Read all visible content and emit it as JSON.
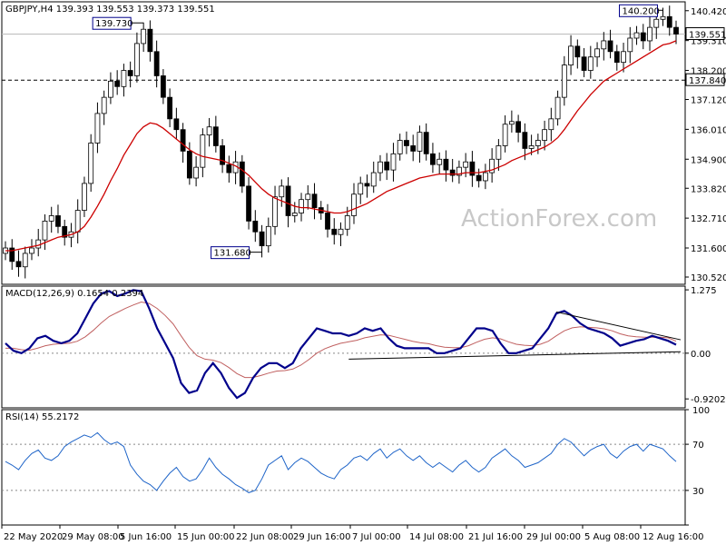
{
  "chart_data": {
    "type": "candlestick",
    "main": {
      "header": "GBPJPY,H4  139.393 139.553 139.373 139.551",
      "y_ticks": [
        "140.420",
        "139.310",
        "138.200",
        "137.120",
        "136.010",
        "134.900",
        "133.820",
        "132.710",
        "131.600",
        "130.520"
      ],
      "y_range": [
        130.25,
        140.75
      ],
      "current_price_label": "139.551",
      "current_price": 139.551,
      "support_label": "137.840",
      "support_level": 137.84,
      "annotations": [
        {
          "text": "139.730",
          "price": 139.73
        },
        {
          "text": "131.680",
          "price": 131.68
        },
        {
          "text": "140.200",
          "price": 140.2
        }
      ],
      "series": [
        {
          "name": "price",
          "color": "#000000",
          "values": [
            131.6,
            131.1,
            130.9,
            131.4,
            131.6,
            131.9,
            132.6,
            132.8,
            132.4,
            132.0,
            132.2,
            133.0,
            134.0,
            135.5,
            136.6,
            137.2,
            137.8,
            137.6,
            138.2,
            138.0,
            139.2,
            139.73,
            138.9,
            138.0,
            137.2,
            136.4,
            136.0,
            135.2,
            134.2,
            134.6,
            135.8,
            136.1,
            135.4,
            134.7,
            134.4,
            134.8,
            133.9,
            132.6,
            132.2,
            131.68,
            132.4,
            133.5,
            133.9,
            132.8,
            132.9,
            133.4,
            133.6,
            133.1,
            132.9,
            132.3,
            132.1,
            132.3,
            132.8,
            133.6,
            134.0,
            133.9,
            134.4,
            134.8,
            134.5,
            135.1,
            135.6,
            135.4,
            135.2,
            135.9,
            135.1,
            134.7,
            134.9,
            134.5,
            134.3,
            134.6,
            134.8,
            134.3,
            134.1,
            134.4,
            134.9,
            135.4,
            136.2,
            136.3,
            135.9,
            135.3,
            135.4,
            135.6,
            136.0,
            136.4,
            137.2,
            138.4,
            139.1,
            138.7,
            138.2,
            138.7,
            139.0,
            139.3,
            138.9,
            138.5,
            138.9,
            139.4,
            139.6,
            139.3,
            139.8,
            140.1,
            140.2,
            139.8,
            139.551
          ]
        },
        {
          "name": "MA",
          "color": "#cc0000",
          "values": [
            131.5,
            131.5,
            131.55,
            131.6,
            131.65,
            131.7,
            131.8,
            131.9,
            132.0,
            132.05,
            132.1,
            132.2,
            132.4,
            132.75,
            133.15,
            133.6,
            134.1,
            134.55,
            135.05,
            135.45,
            135.85,
            136.1,
            136.25,
            136.2,
            136.05,
            135.85,
            135.65,
            135.45,
            135.25,
            135.1,
            135.0,
            134.95,
            134.9,
            134.85,
            134.75,
            134.65,
            134.5,
            134.3,
            134.05,
            133.8,
            133.6,
            133.45,
            133.35,
            133.25,
            133.15,
            133.1,
            133.1,
            133.05,
            133.0,
            132.95,
            132.9,
            132.9,
            132.95,
            133.05,
            133.15,
            133.25,
            133.4,
            133.55,
            133.7,
            133.8,
            133.9,
            134.0,
            134.1,
            134.2,
            134.25,
            134.3,
            134.35,
            134.35,
            134.35,
            134.35,
            134.4,
            134.4,
            134.4,
            134.45,
            134.5,
            134.6,
            134.7,
            134.85,
            134.95,
            135.05,
            135.15,
            135.25,
            135.35,
            135.5,
            135.7,
            136.0,
            136.35,
            136.7,
            137.0,
            137.3,
            137.55,
            137.8,
            137.95,
            138.1,
            138.25,
            138.4,
            138.55,
            138.7,
            138.85,
            139.0,
            139.15,
            139.2,
            139.3
          ]
        }
      ]
    },
    "macd": {
      "header": "MACD(12,26,9) 0.1654 0.2394",
      "y_ticks": [
        "1.275",
        "0.00",
        "-0.9202"
      ],
      "y_range": [
        -1.1,
        1.35
      ],
      "series": [
        {
          "name": "macd",
          "color": "#00008b",
          "values": [
            0.2,
            0.05,
            0.0,
            0.1,
            0.3,
            0.35,
            0.25,
            0.2,
            0.25,
            0.4,
            0.7,
            1.0,
            1.2,
            1.25,
            1.15,
            1.2,
            1.27,
            1.25,
            0.9,
            0.5,
            0.2,
            -0.1,
            -0.6,
            -0.8,
            -0.75,
            -0.4,
            -0.2,
            -0.4,
            -0.7,
            -0.9,
            -0.8,
            -0.5,
            -0.3,
            -0.2,
            -0.2,
            -0.3,
            -0.2,
            0.1,
            0.3,
            0.5,
            0.45,
            0.4,
            0.4,
            0.35,
            0.4,
            0.5,
            0.45,
            0.5,
            0.3,
            0.15,
            0.1,
            0.1,
            0.1,
            0.1,
            0.0,
            0.0,
            0.05,
            0.1,
            0.3,
            0.5,
            0.5,
            0.45,
            0.2,
            0.0,
            0.0,
            0.05,
            0.1,
            0.3,
            0.5,
            0.8,
            0.85,
            0.75,
            0.6,
            0.5,
            0.45,
            0.4,
            0.3,
            0.15,
            0.2,
            0.25,
            0.28,
            0.35,
            0.3,
            0.25,
            0.17
          ]
        },
        {
          "name": "signal",
          "color": "#c06060",
          "values": [
            0.1,
            0.1,
            0.07,
            0.06,
            0.1,
            0.15,
            0.18,
            0.19,
            0.2,
            0.24,
            0.33,
            0.46,
            0.61,
            0.74,
            0.82,
            0.9,
            0.97,
            1.03,
            1.0,
            0.9,
            0.76,
            0.59,
            0.35,
            0.12,
            -0.05,
            -0.12,
            -0.14,
            -0.19,
            -0.29,
            -0.41,
            -0.49,
            -0.49,
            -0.45,
            -0.4,
            -0.36,
            -0.35,
            -0.32,
            -0.24,
            -0.13,
            0.0,
            0.09,
            0.15,
            0.2,
            0.23,
            0.26,
            0.31,
            0.34,
            0.37,
            0.36,
            0.32,
            0.28,
            0.24,
            0.21,
            0.19,
            0.15,
            0.12,
            0.11,
            0.11,
            0.15,
            0.22,
            0.28,
            0.31,
            0.29,
            0.23,
            0.18,
            0.16,
            0.15,
            0.18,
            0.24,
            0.35,
            0.45,
            0.51,
            0.53,
            0.52,
            0.51,
            0.49,
            0.45,
            0.39,
            0.35,
            0.33,
            0.32,
            0.32,
            0.32,
            0.31,
            0.24
          ]
        }
      ]
    },
    "rsi": {
      "header": "RSI(14) 55.2172",
      "y_ticks": [
        "100",
        "70",
        "30",
        "0"
      ],
      "levels": [
        70,
        30
      ],
      "y_range": [
        0,
        100
      ],
      "series": [
        {
          "name": "rsi",
          "color": "#1e64c8",
          "values": [
            55,
            52,
            48,
            56,
            62,
            65,
            58,
            56,
            60,
            68,
            72,
            75,
            78,
            76,
            80,
            74,
            70,
            72,
            68,
            52,
            44,
            38,
            35,
            30,
            38,
            45,
            50,
            42,
            38,
            40,
            48,
            58,
            50,
            44,
            40,
            35,
            32,
            28,
            30,
            40,
            52,
            56,
            60,
            48,
            54,
            58,
            55,
            50,
            45,
            42,
            40,
            48,
            52,
            58,
            60,
            56,
            62,
            66,
            58,
            63,
            66,
            60,
            56,
            60,
            54,
            50,
            54,
            50,
            46,
            52,
            56,
            50,
            46,
            50,
            58,
            62,
            66,
            60,
            56,
            50,
            52,
            54,
            58,
            62,
            70,
            75,
            72,
            66,
            60,
            65,
            68,
            70,
            62,
            58,
            64,
            68,
            70,
            64,
            70,
            68,
            66,
            60,
            55
          ]
        }
      ]
    },
    "x_labels": [
      "22 May 2020",
      "29 May 08:00",
      "5 Jun 16:00",
      "15 Jun 00:00",
      "22 Jun 08:00",
      "29 Jun 16:00",
      "7 Jul 00:00",
      "14 Jul 08:00",
      "21 Jul 16:00",
      "29 Jul 00:00",
      "5 Aug 08:00",
      "12 Aug 16:00"
    ],
    "watermark": "ActionForex.com"
  }
}
